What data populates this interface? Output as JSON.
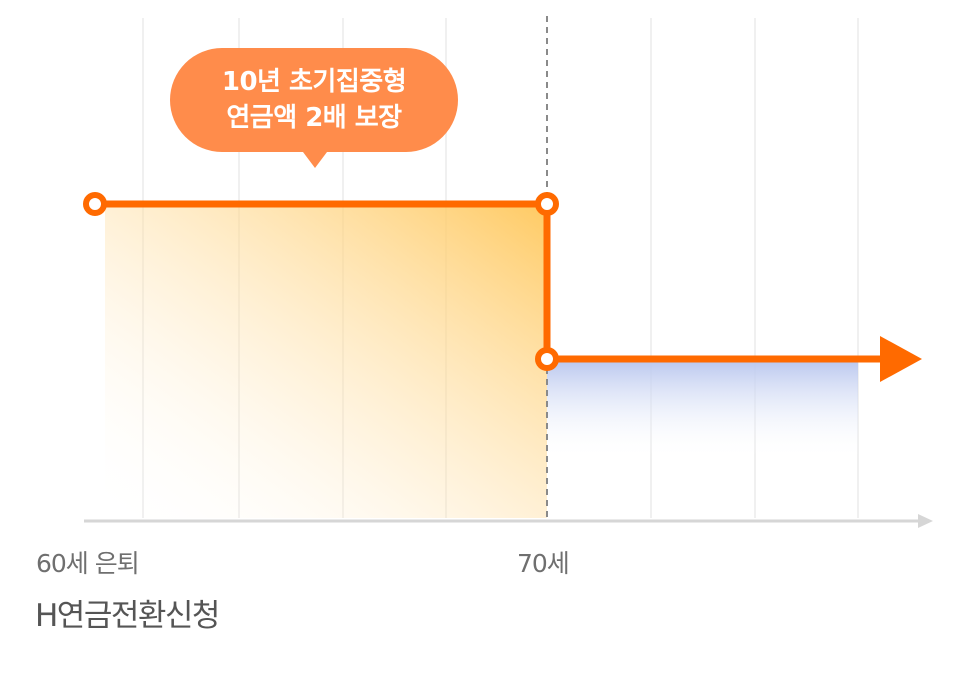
{
  "colors": {
    "line": "#ff6a00",
    "bubble": "#ff8c4b",
    "early_fill": "#ffc75a",
    "later_fill": "#b8c6ee",
    "axis": "#d6d6d6",
    "grid": "#f0f0f0"
  },
  "bubble": {
    "line1": "10년 초기집중형",
    "line2": "연금액 2배 보장"
  },
  "axis": {
    "start_label": "60세 은퇴",
    "mid_label": "70세"
  },
  "caption": "H연금전환신청"
}
